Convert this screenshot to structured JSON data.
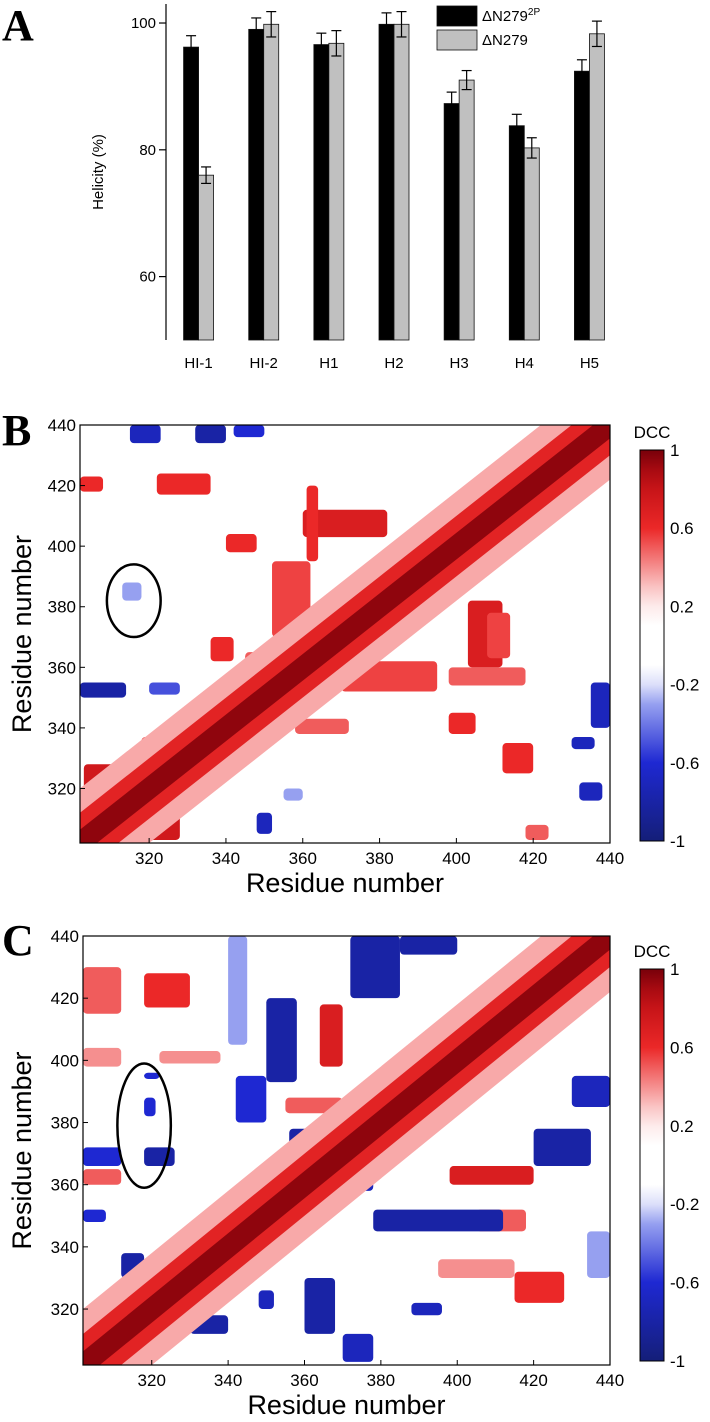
{
  "figure": {
    "panel_letters": [
      "A",
      "B",
      "C"
    ]
  },
  "chart_data": [
    {
      "type": "bar",
      "panel": "A",
      "title": "",
      "xlabel": "",
      "ylabel": "Helicity (%)",
      "ylim": [
        50,
        103
      ],
      "yticks": [
        60,
        80,
        100
      ],
      "categories": [
        "HI-1",
        "HI-2",
        "H1",
        "H2",
        "H3",
        "H4",
        "H5"
      ],
      "series": [
        {
          "name": "ΔN279",
          "superscript": "2P",
          "color": "#000000",
          "values": [
            96.2,
            99.0,
            96.6,
            99.8,
            87.3,
            83.8,
            92.4
          ],
          "errors": [
            1.8,
            1.8,
            1.8,
            1.8,
            1.8,
            1.8,
            1.8
          ]
        },
        {
          "name": "ΔN279",
          "superscript": "",
          "color": "#c0c0c0",
          "values": [
            76.0,
            99.8,
            96.8,
            99.8,
            91.0,
            80.3,
            98.3
          ],
          "errors": [
            1.3,
            2.0,
            2.0,
            2.0,
            1.5,
            1.6,
            2.0
          ]
        }
      ],
      "legend_position": "top-right"
    },
    {
      "type": "heatmap",
      "panel": "B",
      "xlabel": "Residue number",
      "ylabel": "Residue number",
      "xlim": [
        302,
        440
      ],
      "ylim": [
        302,
        440
      ],
      "xticks": [
        320,
        340,
        360,
        380,
        400,
        420,
        440
      ],
      "yticks": [
        320,
        340,
        360,
        380,
        400,
        420,
        440
      ],
      "colorbar": {
        "title": "DCC",
        "range": [
          -1,
          1
        ],
        "tick_labels": [
          "1",
          "0.6",
          "0.2",
          "-0.2",
          "-0.6",
          "-1"
        ],
        "tick_values": [
          1,
          0.6,
          0.2,
          -0.2,
          -0.6,
          -1
        ]
      },
      "annotation": {
        "type": "ellipse",
        "center": [
          316,
          382
        ],
        "semi_axes": [
          7,
          12
        ]
      },
      "regions": [
        {
          "x": [
            303,
            316
          ],
          "y": [
            303,
            328
          ],
          "v": 0.75
        },
        {
          "x": [
            316,
            328
          ],
          "y": [
            303,
            316
          ],
          "v": 0.75
        },
        {
          "x": [
            330,
            335
          ],
          "y": [
            318,
            330
          ],
          "v": 0.6
        },
        {
          "x": [
            318,
            330
          ],
          "y": [
            333,
            337
          ],
          "v": 0.5
        },
        {
          "x": [
            336,
            342
          ],
          "y": [
            362,
            370
          ],
          "v": 0.6
        },
        {
          "x": [
            345,
            360
          ],
          "y": [
            355,
            365
          ],
          "v": 0.5
        },
        {
          "x": [
            360,
            392
          ],
          "y": [
            355,
            360
          ],
          "v": 0.5
        },
        {
          "x": [
            358,
            372
          ],
          "y": [
            338,
            343
          ],
          "v": 0.5
        },
        {
          "x": [
            352,
            362
          ],
          "y": [
            370,
            395
          ],
          "v": 0.55
        },
        {
          "x": [
            370,
            395
          ],
          "y": [
            352,
            362
          ],
          "v": 0.55
        },
        {
          "x": [
            360,
            382
          ],
          "y": [
            403,
            412
          ],
          "v": 0.7
        },
        {
          "x": [
            361,
            364
          ],
          "y": [
            395,
            420
          ],
          "v": 0.6
        },
        {
          "x": [
            403,
            412
          ],
          "y": [
            360,
            382
          ],
          "v": 0.7
        },
        {
          "x": [
            398,
            418
          ],
          "y": [
            354,
            360
          ],
          "v": 0.5
        },
        {
          "x": [
            408,
            414
          ],
          "y": [
            363,
            378
          ],
          "v": 0.55
        },
        {
          "x": [
            340,
            348
          ],
          "y": [
            398,
            404
          ],
          "v": 0.6
        },
        {
          "x": [
            322,
            336
          ],
          "y": [
            417,
            424
          ],
          "v": 0.6
        },
        {
          "x": [
            302,
            308
          ],
          "y": [
            418,
            423
          ],
          "v": 0.6
        },
        {
          "x": [
            398,
            405
          ],
          "y": [
            338,
            345
          ],
          "v": 0.6
        },
        {
          "x": [
            412,
            420
          ],
          "y": [
            325,
            335
          ],
          "v": 0.6
        },
        {
          "x": [
            418,
            424
          ],
          "y": [
            303,
            308
          ],
          "v": 0.5
        },
        {
          "x": [
            402,
            418
          ],
          "y": [
            402,
            418
          ],
          "v": 0.7
        },
        {
          "x": [
            315,
            323
          ],
          "y": [
            434,
            440
          ],
          "v": -0.7
        },
        {
          "x": [
            332,
            340
          ],
          "y": [
            434,
            440
          ],
          "v": -0.8
        },
        {
          "x": [
            342,
            350
          ],
          "y": [
            436,
            440
          ],
          "v": -0.6
        },
        {
          "x": [
            302,
            314
          ],
          "y": [
            350,
            355
          ],
          "v": -0.8
        },
        {
          "x": [
            320,
            328
          ],
          "y": [
            351,
            355
          ],
          "v": -0.5
        },
        {
          "x": [
            348,
            352
          ],
          "y": [
            305,
            312
          ],
          "v": -0.7
        },
        {
          "x": [
            435,
            440
          ],
          "y": [
            340,
            355
          ],
          "v": -0.7
        },
        {
          "x": [
            430,
            436
          ],
          "y": [
            333,
            337
          ],
          "v": -0.7
        },
        {
          "x": [
            432,
            438
          ],
          "y": [
            316,
            322
          ],
          "v": -0.7
        },
        {
          "x": [
            313,
            318
          ],
          "y": [
            382,
            388
          ],
          "v": -0.3
        },
        {
          "x": [
            355,
            360
          ],
          "y": [
            316,
            320
          ],
          "v": -0.3
        }
      ]
    },
    {
      "type": "heatmap",
      "panel": "C",
      "xlabel": "Residue number",
      "ylabel": "Residue number",
      "xlim": [
        302,
        440
      ],
      "ylim": [
        302,
        440
      ],
      "xticks": [
        320,
        340,
        360,
        380,
        400,
        420,
        440
      ],
      "yticks": [
        320,
        340,
        360,
        380,
        400,
        420,
        440
      ],
      "colorbar": {
        "title": "DCC",
        "range": [
          -1,
          1
        ],
        "tick_labels": [
          "1",
          "0.6",
          "0.2",
          "-0.2",
          "-0.6",
          "-1"
        ],
        "tick_values": [
          1,
          0.6,
          0.2,
          -0.2,
          -0.6,
          -1
        ]
      },
      "annotation": {
        "type": "ellipse",
        "center": [
          318,
          379
        ],
        "semi_axes": [
          7,
          20
        ]
      },
      "regions": [
        {
          "x": [
            302,
            312
          ],
          "y": [
            415,
            430
          ],
          "v": 0.5
        },
        {
          "x": [
            318,
            330
          ],
          "y": [
            417,
            428
          ],
          "v": 0.6
        },
        {
          "x": [
            364,
            370
          ],
          "y": [
            398,
            418
          ],
          "v": 0.7
        },
        {
          "x": [
            355,
            370
          ],
          "y": [
            383,
            388
          ],
          "v": 0.5
        },
        {
          "x": [
            398,
            420
          ],
          "y": [
            360,
            366
          ],
          "v": 0.7
        },
        {
          "x": [
            405,
            418
          ],
          "y": [
            345,
            352
          ],
          "v": 0.5
        },
        {
          "x": [
            415,
            428
          ],
          "y": [
            322,
            332
          ],
          "v": 0.6
        },
        {
          "x": [
            302,
            312
          ],
          "y": [
            398,
            404
          ],
          "v": 0.4
        },
        {
          "x": [
            322,
            338
          ],
          "y": [
            399,
            403
          ],
          "v": 0.4
        },
        {
          "x": [
            340,
            346
          ],
          "y": [
            330,
            345
          ],
          "v": 0.5
        },
        {
          "x": [
            400,
            420
          ],
          "y": [
            402,
            418
          ],
          "v": 0.7
        },
        {
          "x": [
            302,
            312
          ],
          "y": [
            360,
            365
          ],
          "v": 0.5
        },
        {
          "x": [
            368,
            376
          ],
          "y": [
            362,
            368
          ],
          "v": 0.5
        },
        {
          "x": [
            395,
            415
          ],
          "y": [
            330,
            336
          ],
          "v": 0.4
        },
        {
          "x": [
            372,
            385
          ],
          "y": [
            420,
            440
          ],
          "v": -0.8
        },
        {
          "x": [
            385,
            400
          ],
          "y": [
            434,
            440
          ],
          "v": -0.8
        },
        {
          "x": [
            350,
            358
          ],
          "y": [
            393,
            420
          ],
          "v": -0.8
        },
        {
          "x": [
            342,
            350
          ],
          "y": [
            380,
            395
          ],
          "v": -0.6
        },
        {
          "x": [
            356,
            362
          ],
          "y": [
            368,
            378
          ],
          "v": -0.8
        },
        {
          "x": [
            318,
            326
          ],
          "y": [
            366,
            372
          ],
          "v": -0.8
        },
        {
          "x": [
            318,
            321
          ],
          "y": [
            382,
            388
          ],
          "v": -0.6
        },
        {
          "x": [
            318,
            322
          ],
          "y": [
            394,
            396
          ],
          "v": -0.6
        },
        {
          "x": [
            302,
            312
          ],
          "y": [
            366,
            372
          ],
          "v": -0.6
        },
        {
          "x": [
            368,
            378
          ],
          "y": [
            358,
            362
          ],
          "v": -0.7
        },
        {
          "x": [
            378,
            412
          ],
          "y": [
            345,
            352
          ],
          "v": -0.8
        },
        {
          "x": [
            420,
            435
          ],
          "y": [
            366,
            378
          ],
          "v": -0.8
        },
        {
          "x": [
            430,
            440
          ],
          "y": [
            385,
            395
          ],
          "v": -0.7
        },
        {
          "x": [
            312,
            318
          ],
          "y": [
            330,
            338
          ],
          "v": -0.8
        },
        {
          "x": [
            330,
            340
          ],
          "y": [
            312,
            318
          ],
          "v": -0.8
        },
        {
          "x": [
            360,
            368
          ],
          "y": [
            312,
            330
          ],
          "v": -0.8
        },
        {
          "x": [
            370,
            378
          ],
          "y": [
            303,
            312
          ],
          "v": -0.7
        },
        {
          "x": [
            348,
            352
          ],
          "y": [
            320,
            326
          ],
          "v": -0.7
        },
        {
          "x": [
            388,
            396
          ],
          "y": [
            318,
            322
          ],
          "v": -0.7
        },
        {
          "x": [
            302,
            308
          ],
          "y": [
            348,
            352
          ],
          "v": -0.6
        },
        {
          "x": [
            340,
            345
          ],
          "y": [
            405,
            440
          ],
          "v": -0.3
        },
        {
          "x": [
            434,
            440
          ],
          "y": [
            330,
            345
          ],
          "v": -0.3
        }
      ]
    }
  ]
}
